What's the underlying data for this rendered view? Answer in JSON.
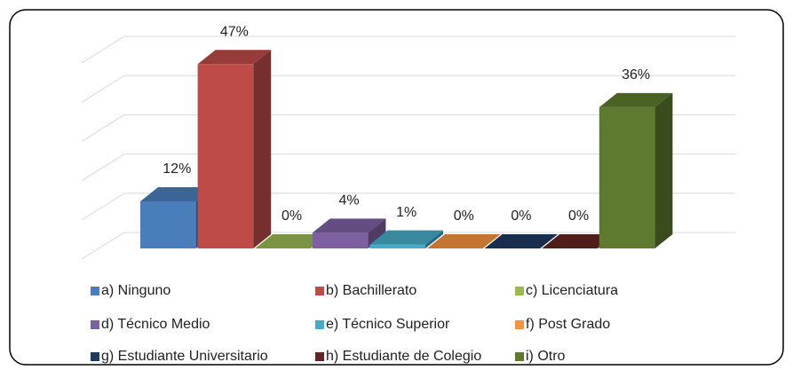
{
  "chart_data": {
    "type": "bar",
    "categories": [
      "a) Ninguno",
      "b) Bachillerato",
      "c) Licenciatura",
      "d) Técnico Medio",
      "e) Técnico Superior",
      "f) Post Grado",
      "g) Estudiante Universitario",
      "h) Estudiante de Colegio",
      "i) Otro"
    ],
    "values": [
      12,
      47,
      0,
      4,
      1,
      0,
      0,
      0,
      36
    ],
    "value_labels": [
      "12%",
      "47%",
      "0%",
      "4%",
      "1%",
      "0%",
      "0%",
      "0%",
      "36%"
    ],
    "colors": [
      "#4a7ebb",
      "#be4b48",
      "#98b954",
      "#7d60a0",
      "#46aac5",
      "#f69240",
      "#1f3a5f",
      "#632523",
      "#5e7a2e"
    ],
    "ylim": [
      0,
      50
    ],
    "yticks": [
      0,
      10,
      20,
      30,
      40,
      50
    ],
    "grid": true,
    "legend": "bottom"
  }
}
